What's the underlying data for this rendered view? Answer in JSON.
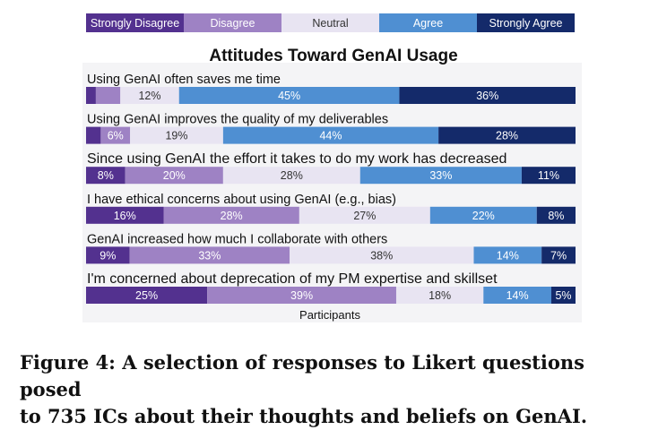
{
  "chart_data": {
    "type": "bar",
    "orientation": "horizontal",
    "stacked": true,
    "normalized_percent": true,
    "title": "Attitudes Toward GenAI Usage",
    "xlabel": "Participants",
    "legend_position": "top",
    "series": [
      {
        "name": "Strongly Disagree",
        "color": "#53318f"
      },
      {
        "name": "Disagree",
        "color": "#9e82c4"
      },
      {
        "name": "Neutral",
        "color": "#e8e4f2"
      },
      {
        "name": "Agree",
        "color": "#4f8fd2"
      },
      {
        "name": "Strongly Agree",
        "color": "#142a6a"
      }
    ],
    "categories": [
      "Using GenAI often saves me time",
      "Using GenAI improves the quality of my deliverables",
      "Since using GenAI the effort it takes to do my work has decreased",
      "I have ethical concerns about using GenAI (e.g., bias)",
      "GenAI increased how much I collaborate with others",
      "I'm concerned about deprecation of my PM expertise and skillset"
    ],
    "values": [
      [
        2,
        5,
        12,
        45,
        36
      ],
      [
        3,
        6,
        19,
        44,
        28
      ],
      [
        8,
        20,
        28,
        33,
        11
      ],
      [
        16,
        28,
        27,
        22,
        8
      ],
      [
        9,
        33,
        38,
        14,
        7
      ],
      [
        25,
        39,
        18,
        14,
        5
      ]
    ],
    "data_labels": [
      [
        "",
        "",
        "12%",
        "45%",
        "36%"
      ],
      [
        "",
        "6%",
        "19%",
        "44%",
        "28%"
      ],
      [
        "8%",
        "20%",
        "28%",
        "33%",
        "11%"
      ],
      [
        "16%",
        "28%",
        "27%",
        "22%",
        "8%"
      ],
      [
        "9%",
        "33%",
        "38%",
        "14%",
        "7%"
      ],
      [
        "25%",
        "39%",
        "18%",
        "14%",
        "5%"
      ]
    ]
  },
  "caption": {
    "line1": "Figure 4: A selection of responses to Likert questions posed",
    "line2": "to 735 ICs about their thoughts and beliefs on GenAI."
  }
}
